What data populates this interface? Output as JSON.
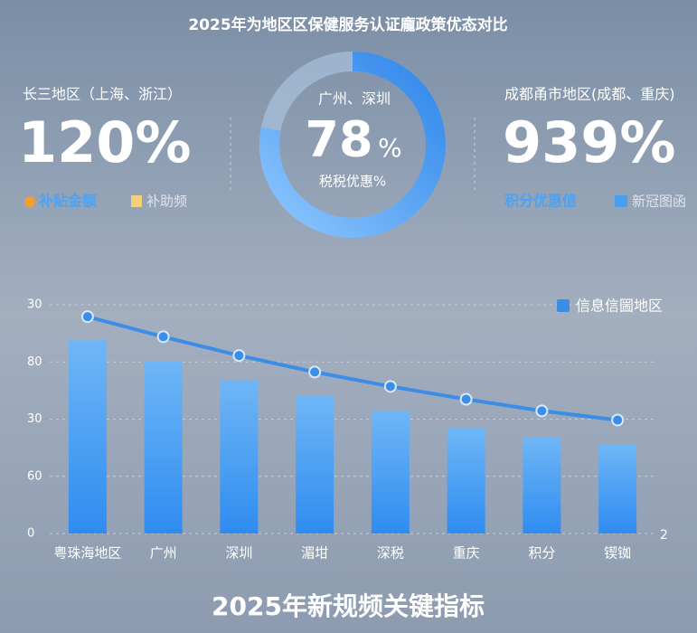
{
  "header": {
    "title": "2025年为地区区保健服务认证龐政策优态对比"
  },
  "stats": [
    {
      "region": "长三地区（上海、浙江）",
      "value_label": "120%",
      "legend": [
        "补贴金额",
        "补助频"
      ]
    },
    {
      "region": "广州、深圳",
      "value": 78,
      "unit": "%",
      "caption": "税税优惠%"
    },
    {
      "region": "成都甬市地区(成都、重庆)",
      "value_label": "939%",
      "legend": [
        "积分优惠值",
        "新冠图函"
      ]
    }
  ],
  "chart_data": {
    "type": "bar",
    "categories": [
      "粤珠海地区",
      "广州",
      "深圳",
      "湄坩",
      "深税",
      "重庆",
      "积分",
      "锲铷"
    ],
    "series": [
      {
        "type": "bar",
        "color": "#4a9ef0",
        "values": [
          84.5,
          75.4,
          67,
          60.3,
          53.6,
          46,
          42,
          38.9
        ]
      },
      {
        "type": "line",
        "name": "信息信圌地区",
        "color": "#3b8de8",
        "values": [
          94.8,
          86,
          77.8,
          70.6,
          64.3,
          58.7,
          53.6,
          49.6
        ]
      }
    ],
    "ylim": [
      0,
      100
    ],
    "yticks": [
      0,
      {
        "value": 25,
        "label": "60"
      },
      {
        "value": 50,
        "label": "30"
      },
      {
        "value": 75,
        "label": "80"
      },
      {
        "value": 100,
        "label": "30"
      }
    ],
    "y2_label": "2",
    "grid": true,
    "legend": "top-right"
  },
  "footer": {
    "title": "2025年新规频关键指标"
  }
}
